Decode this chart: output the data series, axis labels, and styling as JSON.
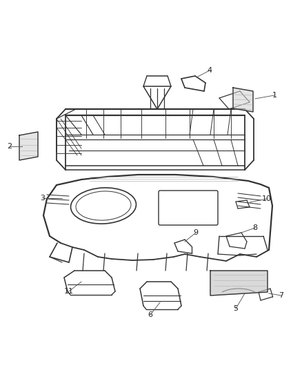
{
  "background_color": "#ffffff",
  "line_color": "#333333",
  "label_color": "#222222",
  "callout_color": "#555555",
  "label_specs": [
    [
      "1",
      370,
      143,
      398,
      138
    ],
    [
      "2",
      32,
      212,
      14,
      212
    ],
    [
      "3",
      90,
      287,
      62,
      287
    ],
    [
      "4",
      285,
      112,
      304,
      102
    ],
    [
      "5",
      355,
      425,
      342,
      447
    ],
    [
      "6",
      232,
      438,
      218,
      456
    ],
    [
      "7",
      390,
      425,
      408,
      428
    ],
    [
      "8",
      350,
      337,
      370,
      330
    ],
    [
      "9",
      268,
      350,
      284,
      337
    ],
    [
      "10",
      362,
      293,
      387,
      288
    ],
    [
      "11",
      118,
      408,
      100,
      422
    ]
  ]
}
